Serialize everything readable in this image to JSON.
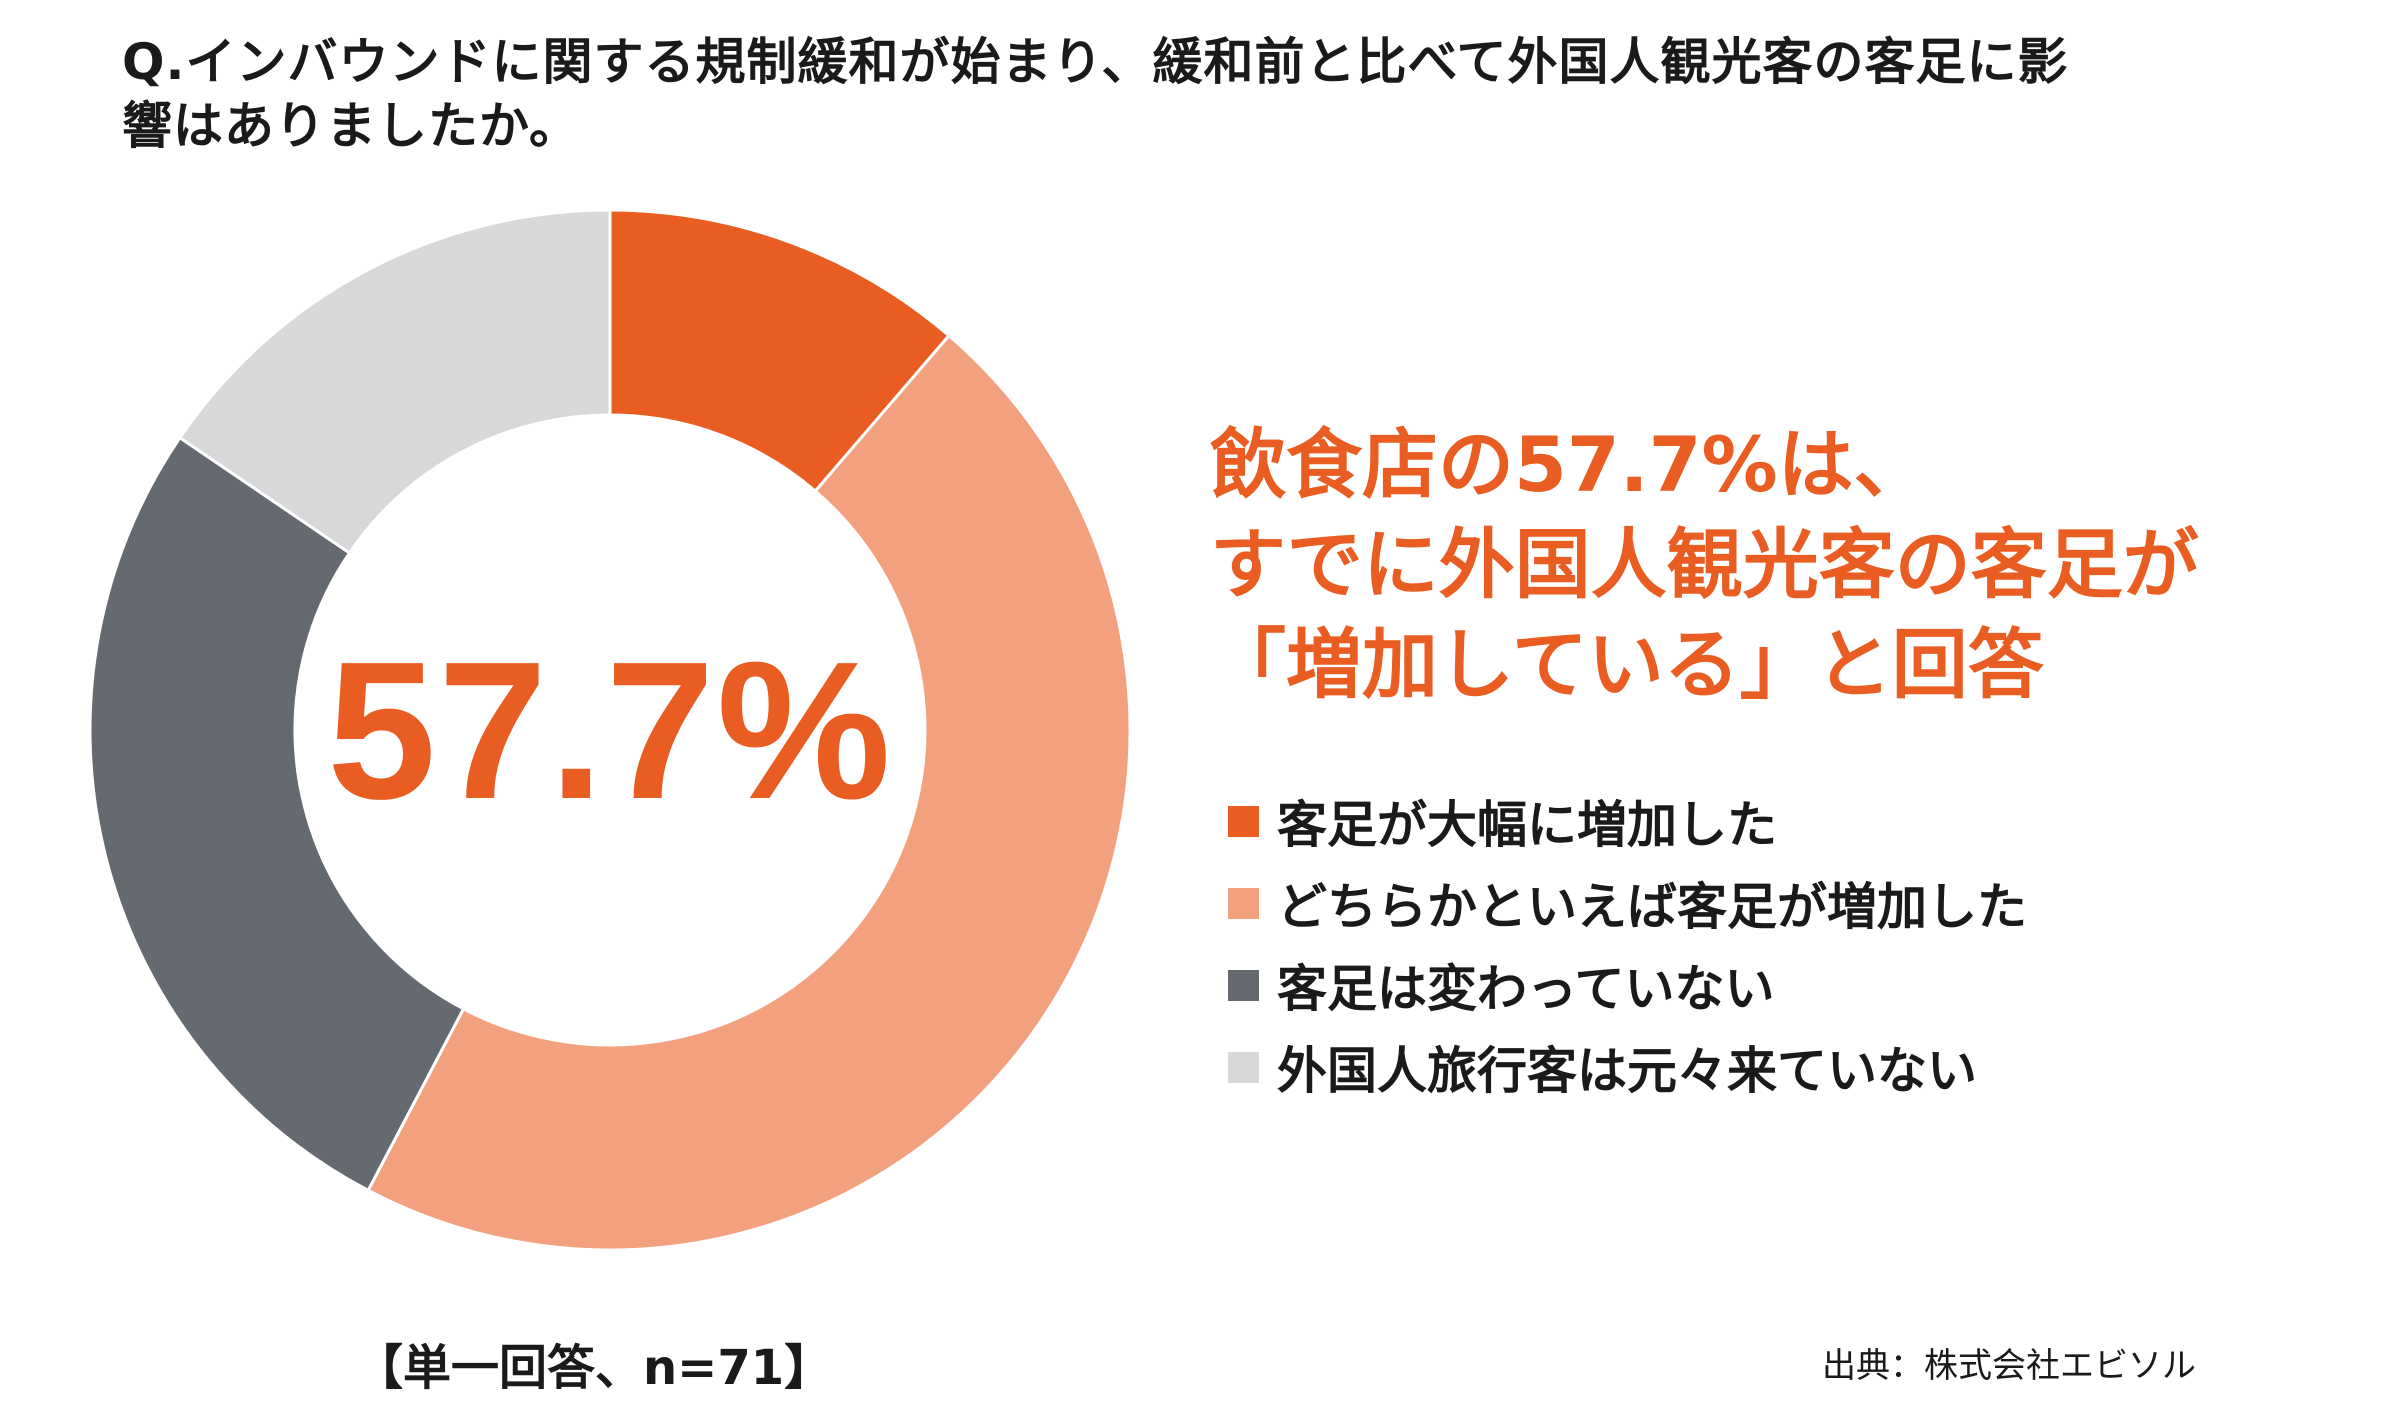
{
  "question": {
    "line1": "Q.インバウンドに関する規制緩和が始まり、緩和前と比べて外国人観光客の客足に影",
    "line2": "響はありましたか。"
  },
  "center_value": "57.7%",
  "headline": {
    "line1": "飲食店の57.7%は、",
    "line2": "すでに外国人観光客の客足が",
    "line3": "「増加している」と回答"
  },
  "note": "【単一回答、n=71】",
  "source": "出典：株式会社エビソル",
  "colors": {
    "accent": "#e95d22",
    "light_orange": "#f3a07e",
    "dark_gray": "#646a70",
    "light_gray": "#d8d8da"
  },
  "chart_data": {
    "type": "pie",
    "variant": "donut",
    "unit": "%",
    "start": "top",
    "direction": "clockwise",
    "slices": [
      {
        "label": "客足が大幅に増加した",
        "value": 11.3,
        "color": "#e95d22"
      },
      {
        "label": "どちらかといえば客足が増加した",
        "value": 46.4,
        "color": "#f3a07e"
      },
      {
        "label": "客足は変わっていない",
        "value": 26.8,
        "color": "#646a70"
      },
      {
        "label": "外国人旅行客は元々来ていない",
        "value": 15.5,
        "color": "#d8d8da"
      }
    ],
    "center_label": "57.7%",
    "legend_position": "right"
  }
}
